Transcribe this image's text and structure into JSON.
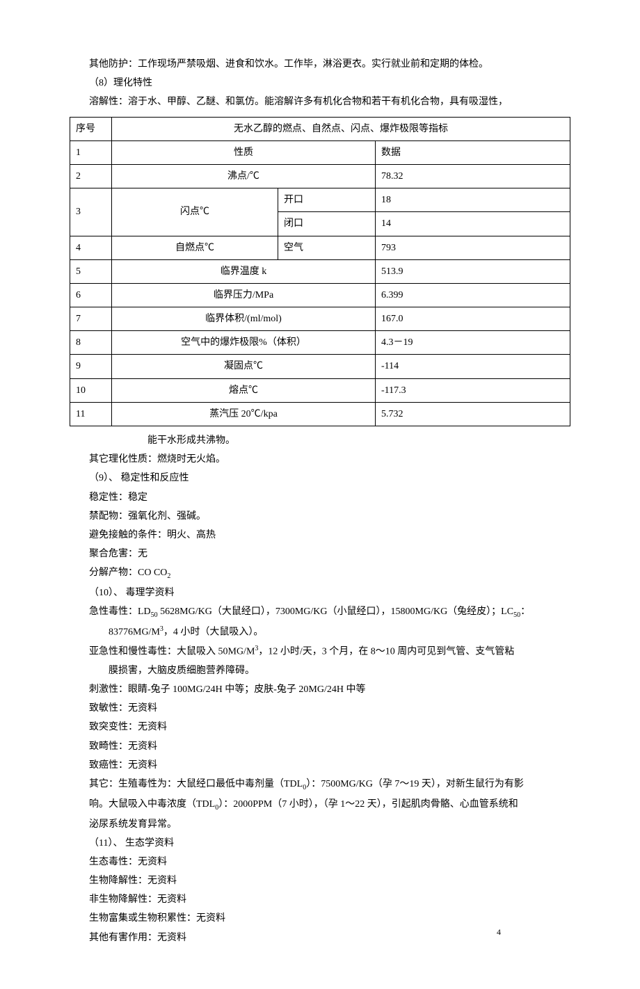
{
  "pre_table": {
    "p1": "其他防护：工作现场严禁吸烟、进食和饮水。工作毕，淋浴更衣。实行就业前和定期的体检。",
    "p2": "（8）理化特性",
    "p3": "溶解性：溶于水、甲醇、乙醚、和氯仿。能溶解许多有机化合物和若干有机化合物，具有吸湿性，"
  },
  "table": {
    "header_seq": "序号",
    "header_title": "无水乙醇的燃点、自然点、闪点、爆炸极限等指标",
    "rows": [
      {
        "seq": "1",
        "prop": "性质",
        "sub": "",
        "data": "数据",
        "colspan": 2
      },
      {
        "seq": "2",
        "prop": "沸点/℃",
        "sub": "",
        "data": "78.32",
        "colspan": 2
      },
      {
        "seq": "3",
        "prop": "闪点℃",
        "sub": "开口",
        "data": "18",
        "rowspan": 2
      },
      {
        "seq": "",
        "prop": "",
        "sub": "闭口",
        "data": "14"
      },
      {
        "seq": "4",
        "prop": "自燃点℃",
        "sub": "空气",
        "data": "793",
        "colspan": 1
      },
      {
        "seq": "5",
        "prop": "临界温度 k",
        "sub": "",
        "data": "513.9",
        "colspan": 2
      },
      {
        "seq": "6",
        "prop": "临界压力/MPa",
        "sub": "",
        "data": "6.399",
        "colspan": 2
      },
      {
        "seq": "7",
        "prop": "临界体积/(ml/mol)",
        "sub": "",
        "data": "167.0",
        "colspan": 2
      },
      {
        "seq": "8",
        "prop": "空气中的爆炸极限%（体积）",
        "sub": "",
        "data": "4.3－19",
        "colspan": 2
      },
      {
        "seq": "9",
        "prop": "凝固点℃",
        "sub": "",
        "data": "-114",
        "colspan": 2
      },
      {
        "seq": "10",
        "prop": "熔点℃",
        "sub": "",
        "data": "-117.3",
        "colspan": 2
      },
      {
        "seq": "11",
        "prop": "蒸汽压 20℃/kpa",
        "sub": "",
        "data": "5.732",
        "colspan": 2
      }
    ]
  },
  "post_table": {
    "p1": "能干水形成共沸物。",
    "p2": "其它理化性质：燃烧时无火焰。",
    "p3": "（9）、 稳定性和反应性",
    "p4": "稳定性：稳定",
    "p5": "禁配物：强氧化剂、强碱。",
    "p6": "避免接触的条件：明火、高热",
    "p7": "聚合危害：无",
    "p8a": "分解产物：CO CO",
    "p8b": "2",
    "p9": "（10）、 毒理学资料",
    "p10a": "急性毒性：LD",
    "p10b": "50",
    "p10c": " 5628MG/KG（大鼠经口），7300MG/KG（小鼠经口），15800MG/KG（兔经皮）；LC",
    "p10d": "50",
    "p10e": "：",
    "p10f_a": "83776MG/M",
    "p10f_b": "3",
    "p10f_c": "，4 小时（大鼠吸入）。",
    "p11a_a": "亚急性和慢性毒性：大鼠吸入 50MG/M",
    "p11a_b": "3",
    "p11a_c": "，12 小时/天，3 个月，在 8～10 周内可见到气管、支气管粘",
    "p11b": "膜损害，大脑皮质细胞营养障碍。",
    "p12": "刺激性：眼睛-兔子 100MG/24H 中等；皮肤-兔子 20MG/24H 中等",
    "p13": "致敏性：无资料",
    "p14": "致突变性：无资料",
    "p15": "致畸性：无资料",
    "p16": "致癌性：无资料",
    "p17a_a": "其它：生殖毒性为：大鼠经口最低中毒剂量（TDL",
    "p17a_b": "0",
    "p17a_c": "）：7500MG/KG（孕 7～19 天），对新生鼠行为有影",
    "p17b_a": "响。大鼠吸入中毒浓度（TDL",
    "p17b_b": "0",
    "p17b_c": "）：2000PPM（7 小时），（孕 1～22 天），引起肌肉骨骼、心血管系统和",
    "p17c": "泌尿系统发育异常。",
    "p18": "（11）、 生态学资料",
    "p19": "生态毒性：无资料",
    "p20": "生物降解性：无资料",
    "p21": "非生物降解性：无资料",
    "p22": "生物富集或生物积累性：无资料",
    "p23": "其他有害作用：无资料"
  },
  "page_number": "4"
}
